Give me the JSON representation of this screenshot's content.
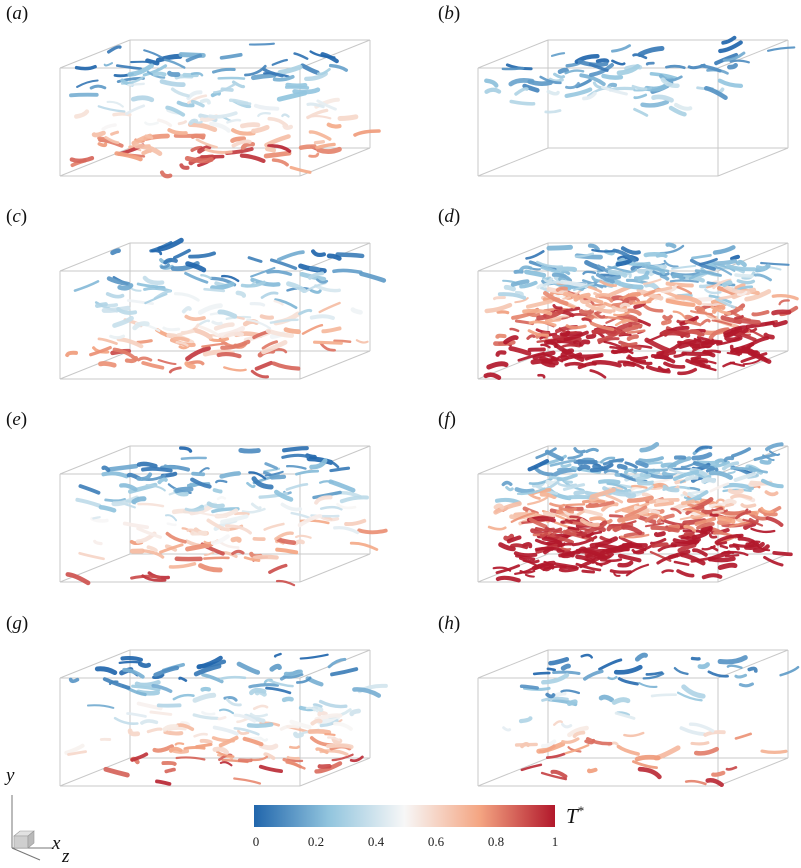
{
  "panels": [
    {
      "label": "a",
      "style": "medium"
    },
    {
      "label": "b",
      "style": "sparse-cool"
    },
    {
      "label": "c",
      "style": "medium"
    },
    {
      "label": "d",
      "style": "dense-hot"
    },
    {
      "label": "e",
      "style": "medium"
    },
    {
      "label": "f",
      "style": "dense-hot"
    },
    {
      "label": "g",
      "style": "medium"
    },
    {
      "label": "h",
      "style": "sparse-mixed"
    }
  ],
  "colorbar": {
    "title": "T",
    "title_sup": "*",
    "ticks": [
      "0",
      "0.2",
      "0.4",
      "0.6",
      "0.8",
      "1"
    ],
    "colors": [
      "#2166ac",
      "#92c5de",
      "#f7f7f7",
      "#f4a582",
      "#b2182b"
    ]
  },
  "axes": {
    "y": "y",
    "x": "x",
    "z": "z"
  }
}
